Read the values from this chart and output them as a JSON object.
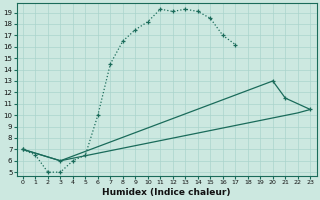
{
  "xlabel": "Humidex (Indice chaleur)",
  "bg_color": "#cce8e0",
  "line_color": "#1a6b5a",
  "grid_color": "#aad4cc",
  "xlim": [
    -0.5,
    23.5
  ],
  "ylim": [
    4.7,
    19.8
  ],
  "xticks": [
    0,
    1,
    2,
    3,
    4,
    5,
    6,
    7,
    8,
    9,
    10,
    11,
    12,
    13,
    14,
    15,
    16,
    17,
    18,
    19,
    20,
    21,
    22,
    23
  ],
  "yticks": [
    5,
    6,
    7,
    8,
    9,
    10,
    11,
    12,
    13,
    14,
    15,
    16,
    17,
    18,
    19
  ],
  "line1_x": [
    0,
    1,
    2,
    3,
    4,
    5,
    6,
    7,
    8,
    9,
    10,
    11,
    12,
    13,
    14,
    15,
    16,
    17
  ],
  "line1_y": [
    7.0,
    6.5,
    5.0,
    5.0,
    6.0,
    6.5,
    10.0,
    14.5,
    16.5,
    17.5,
    18.2,
    19.3,
    19.1,
    19.3,
    19.1,
    18.5,
    17.0,
    16.2
  ],
  "line2_x": [
    0,
    3,
    20,
    21,
    23
  ],
  "line2_y": [
    7.0,
    6.0,
    13.0,
    11.5,
    10.5
  ],
  "line3_x": [
    0,
    3,
    22,
    23
  ],
  "line3_y": [
    7.0,
    6.0,
    10.2,
    10.5
  ],
  "xlabel_fontsize": 6.5,
  "tick_fontsize_x": 4.5,
  "tick_fontsize_y": 5.0
}
